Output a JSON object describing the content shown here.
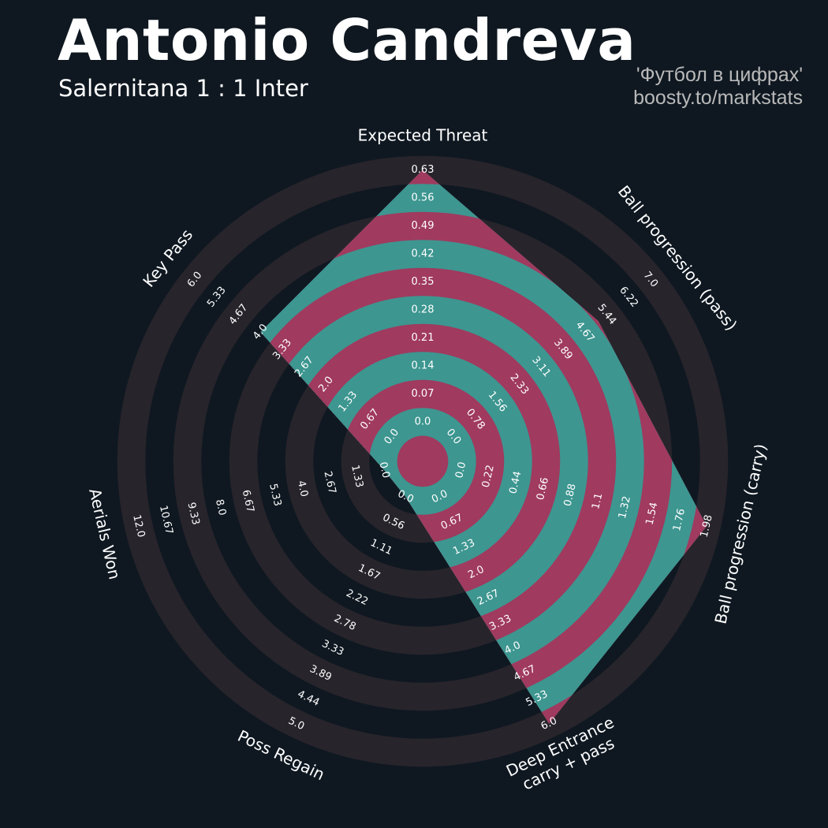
{
  "header": {
    "title": "Antonio Candreva",
    "subtitle": "Salernitana 1 : 1 Inter",
    "credit_line1": "'Футбол в цифрах'",
    "credit_line2": "boosty.to/markstats"
  },
  "colors": {
    "background": "#0f1821",
    "ring_dark": "#28242b",
    "fill_teal": "#3d9690",
    "fill_magenta": "#a03a5f"
  },
  "chart_data": {
    "type": "radar",
    "title": "Antonio Candreva",
    "subtitle": "Salernitana 1 : 1 Inter",
    "params": [
      {
        "name": "Expected Threat",
        "lines": [
          "Expected Threat"
        ],
        "ticks": [
          "0.0",
          "0.07",
          "0.14",
          "0.21",
          "0.28",
          "0.35",
          "0.42",
          "0.49",
          "0.56",
          "0.63"
        ],
        "min": 0.0,
        "max": 0.63,
        "value": 0.63
      },
      {
        "name": "Ball progression (pass)",
        "lines": [
          "Ball progression (pass)"
        ],
        "ticks": [
          "0.0",
          "0.78",
          "1.56",
          "2.33",
          "3.11",
          "3.89",
          "4.67",
          "5.44",
          "6.22",
          "7.0"
        ],
        "min": 0.0,
        "max": 7.0,
        "value": 5.15
      },
      {
        "name": "Ball progression (carry)",
        "lines": [
          "Ball progression (carry)"
        ],
        "ticks": [
          "0.0",
          "0.22",
          "0.44",
          "0.66",
          "0.88",
          "1.1",
          "1.32",
          "1.54",
          "1.76",
          "1.98"
        ],
        "min": 0.0,
        "max": 1.98,
        "value": 1.98
      },
      {
        "name": "Deep Entrance carry + pass",
        "lines": [
          "Deep Entrance",
          "carry + pass"
        ],
        "ticks": [
          "0.0",
          "0.67",
          "1.33",
          "2.0",
          "2.67",
          "3.33",
          "4.0",
          "4.67",
          "5.33",
          "6.0"
        ],
        "min": 0.0,
        "max": 6.0,
        "value": 6.0
      },
      {
        "name": "Poss Regain",
        "lines": [
          "Poss Regain"
        ],
        "ticks": [
          "0.0",
          "0.56",
          "1.11",
          "1.67",
          "2.22",
          "2.78",
          "3.33",
          "3.89",
          "4.44",
          "5.0"
        ],
        "min": 0.0,
        "max": 5.0,
        "value": 0.0
      },
      {
        "name": "Aerials Won",
        "lines": [
          "Aerials Won"
        ],
        "ticks": [
          "0.0",
          "1.33",
          "2.67",
          "4.0",
          "5.33",
          "6.67",
          "8.0",
          "9.33",
          "10.67",
          "12.0"
        ],
        "min": 0.0,
        "max": 12.0,
        "value": 0.0
      },
      {
        "name": "Key Pass",
        "lines": [
          "Key Pass"
        ],
        "ticks": [
          "0.0",
          "0.67",
          "1.33",
          "2.0",
          "2.67",
          "3.33",
          "4.0",
          "4.67",
          "5.33",
          "6.0"
        ],
        "min": 0.0,
        "max": 6.0,
        "value": 4.0
      }
    ]
  }
}
